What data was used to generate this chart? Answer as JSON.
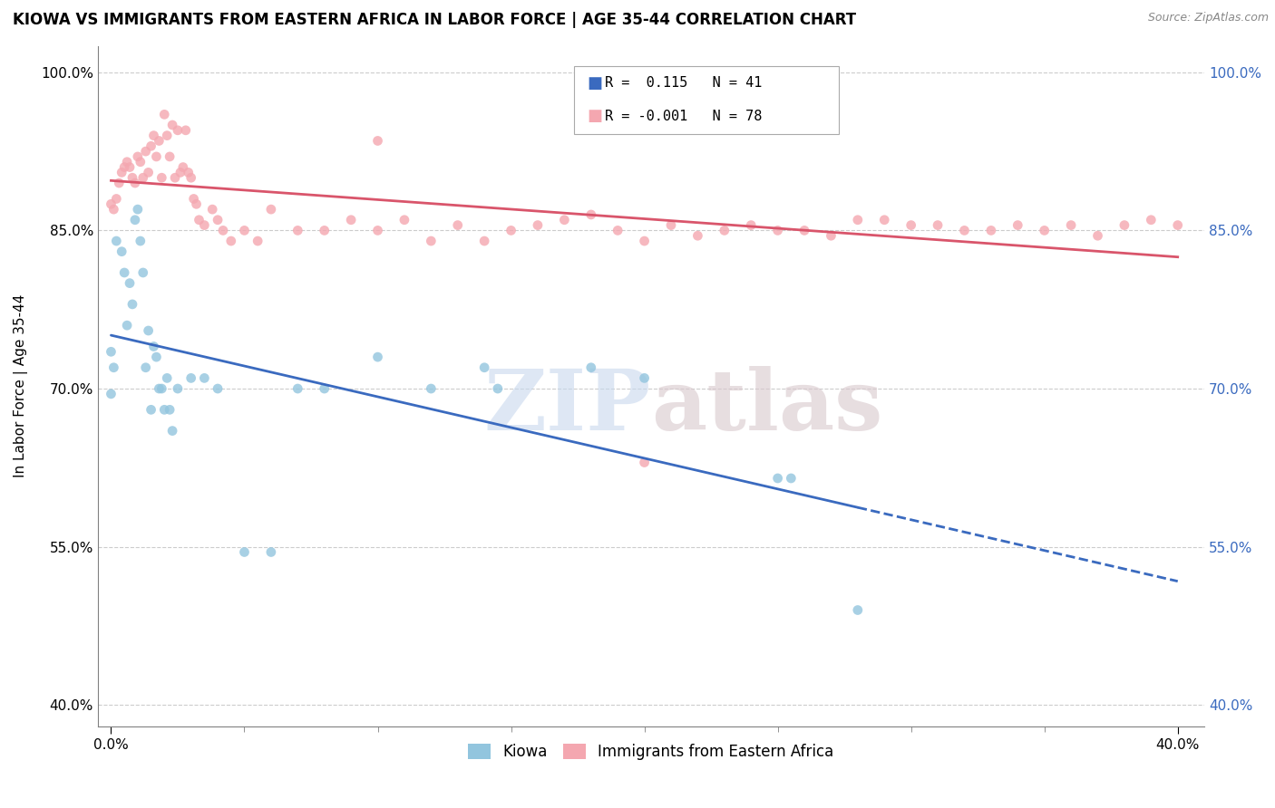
{
  "title": "KIOWA VS IMMIGRANTS FROM EASTERN AFRICA IN LABOR FORCE | AGE 35-44 CORRELATION CHART",
  "source": "Source: ZipAtlas.com",
  "ylabel": "In Labor Force | Age 35-44",
  "xlim": [
    -0.5,
    41.0
  ],
  "ylim": [
    0.38,
    1.025
  ],
  "yticks": [
    0.4,
    0.55,
    0.7,
    0.85,
    1.0
  ],
  "ytick_labels": [
    "40.0%",
    "55.0%",
    "70.0%",
    "85.0%",
    "100.0%"
  ],
  "xtick_positions": [
    0.0,
    40.0
  ],
  "xtick_labels": [
    "0.0%",
    "40.0%"
  ],
  "kiowa_R": 0.115,
  "kiowa_N": 41,
  "immig_R": -0.001,
  "immig_N": 78,
  "kiowa_color": "#92c5de",
  "immig_color": "#f4a7b0",
  "kiowa_line_color": "#3a6abf",
  "immig_line_color": "#d9556b",
  "legend_label_kiowa": "Kiowa",
  "legend_label_immig": "Immigrants from Eastern Africa",
  "watermark_zip": "ZIP",
  "watermark_atlas": "atlas",
  "kiowa_scatter_x": [
    0.0,
    0.0,
    0.1,
    0.2,
    0.4,
    0.5,
    0.6,
    0.7,
    0.8,
    0.9,
    1.0,
    1.1,
    1.2,
    1.3,
    1.4,
    1.5,
    1.6,
    1.7,
    1.8,
    1.9,
    2.0,
    2.1,
    2.2,
    2.3,
    2.5,
    3.0,
    3.5,
    4.0,
    5.0,
    6.0,
    7.0,
    8.0,
    10.0,
    12.0,
    14.0,
    14.5,
    18.0,
    20.0,
    25.0,
    25.5,
    28.0
  ],
  "kiowa_scatter_y": [
    0.735,
    0.695,
    0.72,
    0.84,
    0.83,
    0.81,
    0.76,
    0.8,
    0.78,
    0.86,
    0.87,
    0.84,
    0.81,
    0.72,
    0.755,
    0.68,
    0.74,
    0.73,
    0.7,
    0.7,
    0.68,
    0.71,
    0.68,
    0.66,
    0.7,
    0.71,
    0.71,
    0.7,
    0.545,
    0.545,
    0.7,
    0.7,
    0.73,
    0.7,
    0.72,
    0.7,
    0.72,
    0.71,
    0.615,
    0.615,
    0.49
  ],
  "immig_scatter_x": [
    0.0,
    0.1,
    0.2,
    0.3,
    0.4,
    0.5,
    0.6,
    0.7,
    0.8,
    0.9,
    1.0,
    1.1,
    1.2,
    1.3,
    1.4,
    1.5,
    1.6,
    1.7,
    1.8,
    1.9,
    2.0,
    2.1,
    2.2,
    2.3,
    2.4,
    2.5,
    2.6,
    2.7,
    2.8,
    2.9,
    3.0,
    3.1,
    3.2,
    3.3,
    3.5,
    3.8,
    4.0,
    4.2,
    4.5,
    5.0,
    5.5,
    6.0,
    7.0,
    8.0,
    9.0,
    10.0,
    11.0,
    12.0,
    13.0,
    14.0,
    15.0,
    16.0,
    17.0,
    18.0,
    19.0,
    20.0,
    21.0,
    22.0,
    23.0,
    24.0,
    25.0,
    26.0,
    27.0,
    28.0,
    29.0,
    30.0,
    31.0,
    32.0,
    33.0,
    34.0,
    35.0,
    36.0,
    37.0,
    38.0,
    39.0,
    40.0,
    20.0,
    10.0
  ],
  "immig_scatter_y": [
    0.875,
    0.87,
    0.88,
    0.895,
    0.905,
    0.91,
    0.915,
    0.91,
    0.9,
    0.895,
    0.92,
    0.915,
    0.9,
    0.925,
    0.905,
    0.93,
    0.94,
    0.92,
    0.935,
    0.9,
    0.96,
    0.94,
    0.92,
    0.95,
    0.9,
    0.945,
    0.905,
    0.91,
    0.945,
    0.905,
    0.9,
    0.88,
    0.875,
    0.86,
    0.855,
    0.87,
    0.86,
    0.85,
    0.84,
    0.85,
    0.84,
    0.87,
    0.85,
    0.85,
    0.86,
    0.85,
    0.86,
    0.84,
    0.855,
    0.84,
    0.85,
    0.855,
    0.86,
    0.865,
    0.85,
    0.84,
    0.855,
    0.845,
    0.85,
    0.855,
    0.85,
    0.85,
    0.845,
    0.86,
    0.86,
    0.855,
    0.855,
    0.85,
    0.85,
    0.855,
    0.85,
    0.855,
    0.845,
    0.855,
    0.86,
    0.855,
    0.63,
    0.935
  ]
}
